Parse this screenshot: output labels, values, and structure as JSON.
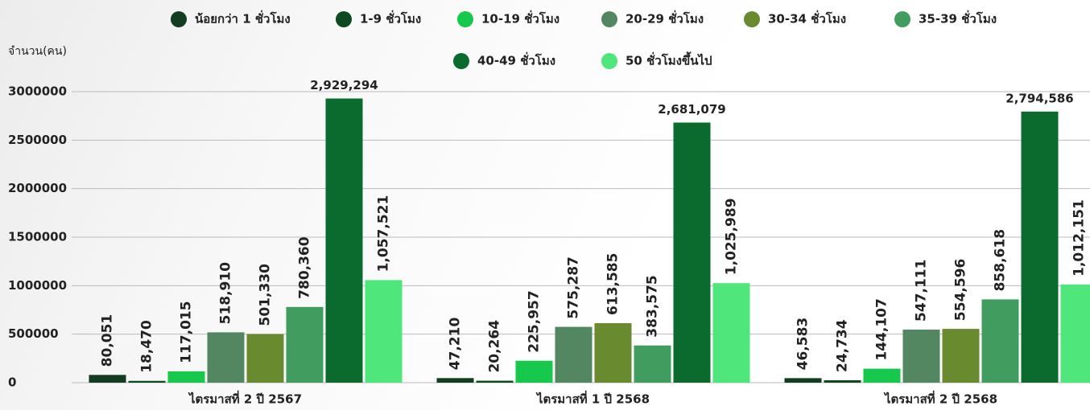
{
  "chart_data": {
    "type": "bar",
    "y_axis_label": "จำนวน(คน)",
    "categories": [
      "ไตรมาสที่ 2 ปี 2567",
      "ไตรมาสที่ 1 ปี 2568",
      "ไตรมาสที่ 2 ปี 2568"
    ],
    "series": [
      {
        "name": "น้อยกว่า 1 ชั่วโมง",
        "color": "#123d20",
        "values": [
          80051,
          47210,
          46583
        ],
        "value_labels": [
          "80,051",
          "47,210",
          "46,583"
        ]
      },
      {
        "name": "1-9 ชั่วโมง",
        "color": "#0c4a22",
        "values": [
          18470,
          20264,
          24734
        ],
        "value_labels": [
          "18,470",
          "20,264",
          "24,734"
        ]
      },
      {
        "name": "10-19 ชั่วโมง",
        "color": "#16c94c",
        "values": [
          117015,
          225957,
          144107
        ],
        "value_labels": [
          "117,015",
          "225,957",
          "144,107"
        ]
      },
      {
        "name": "20-29 ชั่วโมง",
        "color": "#528762",
        "values": [
          518910,
          575287,
          547111
        ],
        "value_labels": [
          "518,910",
          "575,287",
          "547,111"
        ]
      },
      {
        "name": "30-34 ชั่วโมง",
        "color": "#6a8a2f",
        "values": [
          501330,
          613585,
          554596
        ],
        "value_labels": [
          "501,330",
          "613,585",
          "554,596"
        ]
      },
      {
        "name": "35-39 ชั่วโมง",
        "color": "#409d5f",
        "values": [
          780360,
          383575,
          858618
        ],
        "value_labels": [
          "780,360",
          "383,575",
          "858,618"
        ]
      },
      {
        "name": "40-49 ชั่วโมง",
        "color": "#0b6a2e",
        "values": [
          2929294,
          2681079,
          2794586
        ],
        "value_labels": [
          "2,929,294",
          "2,681,079",
          "2,794,586"
        ]
      },
      {
        "name": "50 ชั่วโมงขึ้นไป",
        "color": "#4fe67c",
        "values": [
          1057521,
          1025989,
          1012151
        ],
        "value_labels": [
          "1,057,521",
          "1,025,989",
          "1,012,151"
        ]
      }
    ],
    "ylim": [
      0,
      3000000
    ],
    "yticks": [
      0,
      500000,
      1000000,
      1500000,
      2000000,
      2500000,
      3000000
    ],
    "grid": true
  }
}
